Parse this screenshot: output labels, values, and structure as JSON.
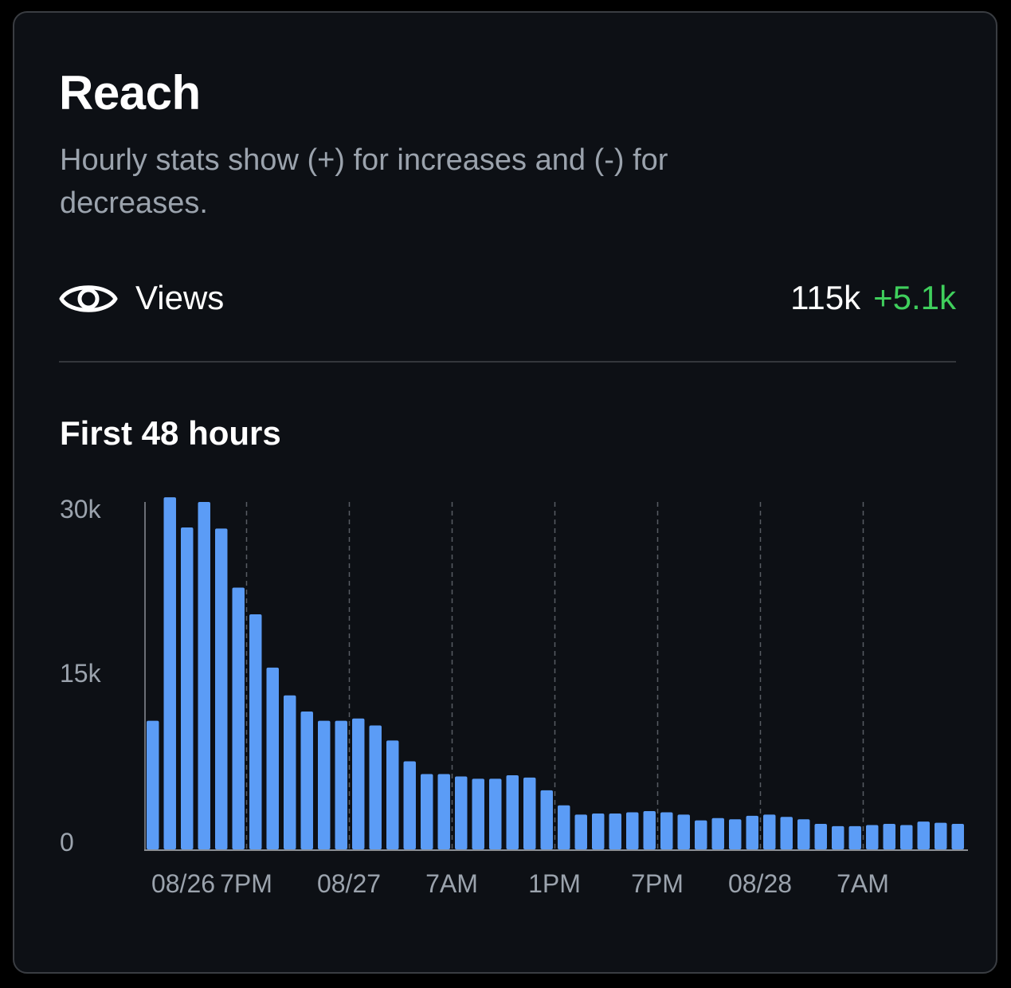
{
  "card": {
    "title": "Reach",
    "subtitle": "Hourly stats show (+) for increases and (-) for decreases."
  },
  "metric": {
    "icon": "eye-icon",
    "label": "Views",
    "value": "115k",
    "delta": "+5.1k"
  },
  "chart_section": {
    "title": "First 48 hours"
  },
  "colors": {
    "bar": "#5b9cf6",
    "delta_positive": "#3fcf5c",
    "background": "#0d1015",
    "muted_text": "#9ba3ad"
  },
  "chart_data": {
    "type": "bar",
    "title": "First 48 hours",
    "ylim": [
      0,
      30000
    ],
    "y_ticks": [
      {
        "value": 0,
        "label": "0"
      },
      {
        "value": 15000,
        "label": "15k"
      },
      {
        "value": 30000,
        "label": "30k"
      }
    ],
    "x_ticks": [
      {
        "index": 0,
        "label": "08/26"
      },
      {
        "index": 6,
        "label": "7PM"
      },
      {
        "index": 12,
        "label": "08/27"
      },
      {
        "index": 18,
        "label": "7AM"
      },
      {
        "index": 24,
        "label": "1PM"
      },
      {
        "index": 30,
        "label": "7PM"
      },
      {
        "index": 36,
        "label": "08/28"
      },
      {
        "index": 42,
        "label": "7AM"
      }
    ],
    "vertical_grid": "dashed at x tick positions",
    "values": [
      11100,
      30400,
      27800,
      30000,
      27700,
      22600,
      20300,
      15700,
      13300,
      11900,
      11100,
      11100,
      11300,
      10700,
      9400,
      7600,
      6500,
      6500,
      6300,
      6100,
      6100,
      6400,
      6200,
      5100,
      3800,
      3000,
      3100,
      3100,
      3200,
      3300,
      3200,
      3000,
      2500,
      2700,
      2600,
      2900,
      3000,
      2800,
      2600,
      2200,
      2000,
      2000,
      2100,
      2200,
      2100,
      2400,
      2300,
      2200
    ]
  }
}
